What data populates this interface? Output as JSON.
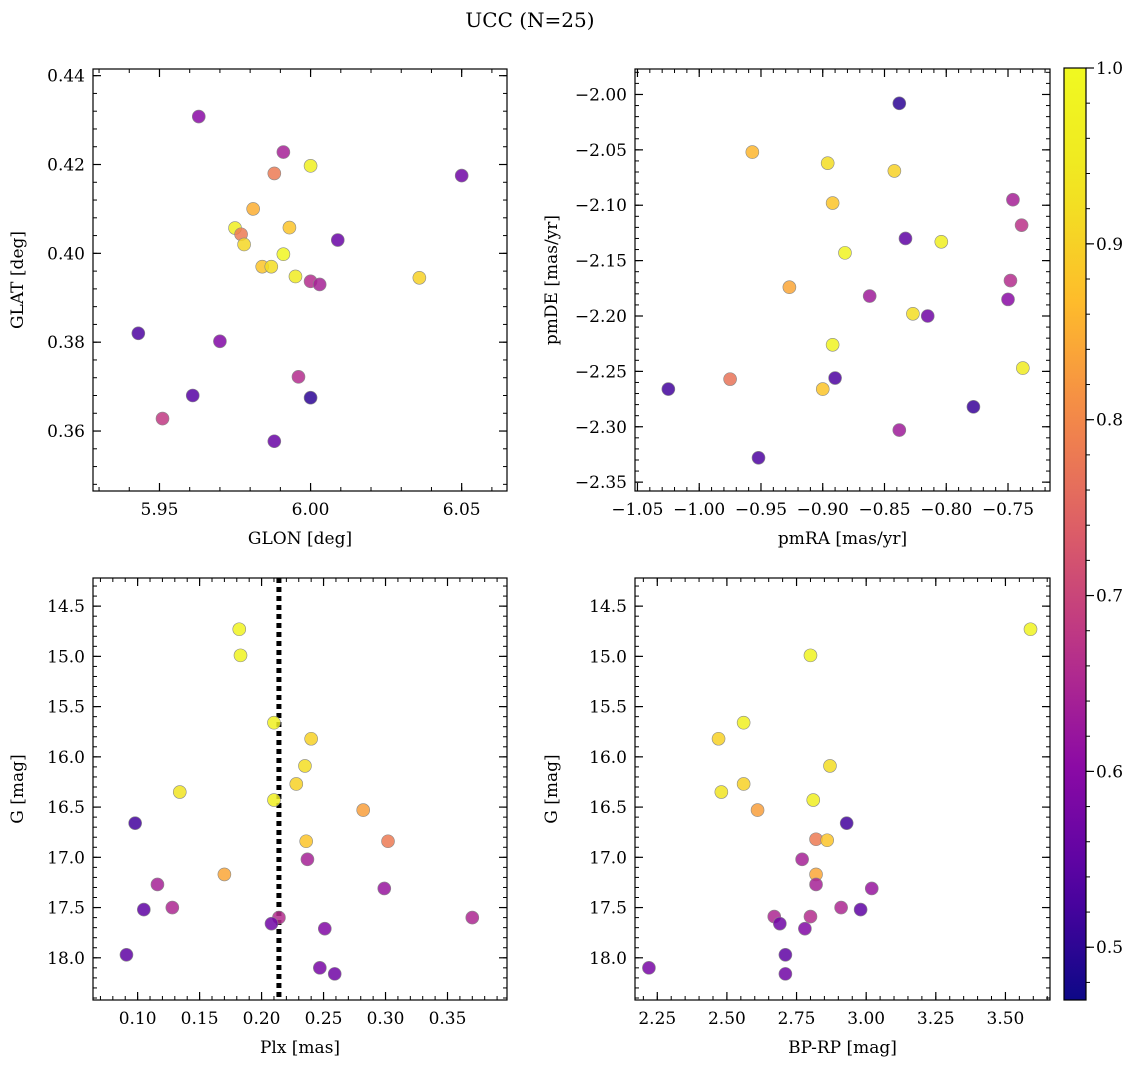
{
  "figure": {
    "title": "UCC (N=25)"
  },
  "colorbar": {
    "ticks": [
      0.5,
      0.6,
      0.7,
      0.8,
      0.9,
      1.0
    ],
    "tick_labels": [
      "0.5",
      "0.6",
      "0.7",
      "0.8",
      "0.9",
      "1.0"
    ],
    "range": [
      0.47,
      1.0
    ],
    "colormap": "plasma"
  },
  "chart_data": [
    {
      "type": "scatter",
      "xlabel": "GLON [deg]",
      "ylabel": "GLAT [deg]",
      "xlim": [
        5.928,
        6.065
      ],
      "ylim": [
        0.3465,
        0.4415
      ],
      "xticks": [
        5.95,
        6.0,
        6.05
      ],
      "xtick_labels": [
        "5.95",
        "6.00",
        "6.05"
      ],
      "yticks": [
        0.36,
        0.38,
        0.4,
        0.42,
        0.44
      ],
      "ytick_labels": [
        "0.36",
        "0.38",
        "0.40",
        "0.42",
        "0.44"
      ],
      "y_inverted": false,
      "points": [
        {
          "x": 5.963,
          "y": 0.4308,
          "c": 0.6
        },
        {
          "x": 5.991,
          "y": 0.4228,
          "c": 0.64
        },
        {
          "x": 6.0,
          "y": 0.4197,
          "c": 0.97
        },
        {
          "x": 5.988,
          "y": 0.418,
          "c": 0.78
        },
        {
          "x": 6.05,
          "y": 0.4175,
          "c": 0.57
        },
        {
          "x": 5.981,
          "y": 0.41,
          "c": 0.85
        },
        {
          "x": 5.993,
          "y": 0.4058,
          "c": 0.88
        },
        {
          "x": 5.975,
          "y": 0.4057,
          "c": 0.96
        },
        {
          "x": 5.977,
          "y": 0.4043,
          "c": 0.78
        },
        {
          "x": 6.009,
          "y": 0.403,
          "c": 0.56
        },
        {
          "x": 5.978,
          "y": 0.402,
          "c": 0.91
        },
        {
          "x": 5.991,
          "y": 0.3998,
          "c": 0.99
        },
        {
          "x": 5.984,
          "y": 0.397,
          "c": 0.88
        },
        {
          "x": 5.987,
          "y": 0.397,
          "c": 0.92
        },
        {
          "x": 5.995,
          "y": 0.3948,
          "c": 0.95
        },
        {
          "x": 6.036,
          "y": 0.3945,
          "c": 0.9
        },
        {
          "x": 6.0,
          "y": 0.3937,
          "c": 0.66
        },
        {
          "x": 6.003,
          "y": 0.393,
          "c": 0.64
        },
        {
          "x": 5.943,
          "y": 0.382,
          "c": 0.53
        },
        {
          "x": 5.97,
          "y": 0.3802,
          "c": 0.59
        },
        {
          "x": 5.996,
          "y": 0.3722,
          "c": 0.66
        },
        {
          "x": 5.961,
          "y": 0.368,
          "c": 0.54
        },
        {
          "x": 6.0,
          "y": 0.3675,
          "c": 0.5
        },
        {
          "x": 5.951,
          "y": 0.3628,
          "c": 0.68
        },
        {
          "x": 5.988,
          "y": 0.3577,
          "c": 0.56
        }
      ]
    },
    {
      "type": "scatter",
      "xlabel": "pmRA [mas/yr]",
      "ylabel": "pmDE [mas/yr]",
      "xlim": [
        -1.052,
        -0.716
      ],
      "ylim": [
        -2.358,
        -1.977
      ],
      "xticks": [
        -1.05,
        -1.0,
        -0.95,
        -0.9,
        -0.85,
        -0.8,
        -0.75
      ],
      "xtick_labels": [
        "−1.05",
        "−1.00",
        "−0.95",
        "−0.90",
        "−0.85",
        "−0.80",
        "−0.75"
      ],
      "yticks": [
        -2.35,
        -2.3,
        -2.25,
        -2.2,
        -2.15,
        -2.1,
        -2.05,
        -2.0
      ],
      "ytick_labels": [
        "−2.35",
        "−2.30",
        "−2.25",
        "−2.20",
        "−2.15",
        "−2.10",
        "−2.05",
        "−2.00"
      ],
      "y_inverted": false,
      "points": [
        {
          "x": -0.838,
          "y": -2.008,
          "c": 0.5
        },
        {
          "x": -0.957,
          "y": -2.052,
          "c": 0.86
        },
        {
          "x": -0.896,
          "y": -2.062,
          "c": 0.92
        },
        {
          "x": -0.842,
          "y": -2.069,
          "c": 0.9
        },
        {
          "x": -0.746,
          "y": -2.095,
          "c": 0.64
        },
        {
          "x": -0.892,
          "y": -2.098,
          "c": 0.88
        },
        {
          "x": -0.739,
          "y": -2.118,
          "c": 0.67
        },
        {
          "x": -0.833,
          "y": -2.13,
          "c": 0.55
        },
        {
          "x": -0.804,
          "y": -2.133,
          "c": 0.96
        },
        {
          "x": -0.882,
          "y": -2.143,
          "c": 0.98
        },
        {
          "x": -0.748,
          "y": -2.168,
          "c": 0.66
        },
        {
          "x": -0.927,
          "y": -2.174,
          "c": 0.84
        },
        {
          "x": -0.862,
          "y": -2.182,
          "c": 0.63
        },
        {
          "x": -0.75,
          "y": -2.185,
          "c": 0.6
        },
        {
          "x": -0.827,
          "y": -2.198,
          "c": 0.92
        },
        {
          "x": -0.815,
          "y": -2.2,
          "c": 0.57
        },
        {
          "x": -0.892,
          "y": -2.226,
          "c": 0.98
        },
        {
          "x": -0.738,
          "y": -2.247,
          "c": 0.95
        },
        {
          "x": -0.89,
          "y": -2.256,
          "c": 0.53
        },
        {
          "x": -0.975,
          "y": -2.257,
          "c": 0.77
        },
        {
          "x": -1.025,
          "y": -2.266,
          "c": 0.52
        },
        {
          "x": -0.9,
          "y": -2.266,
          "c": 0.88
        },
        {
          "x": -0.778,
          "y": -2.282,
          "c": 0.51
        },
        {
          "x": -0.838,
          "y": -2.303,
          "c": 0.63
        },
        {
          "x": -0.952,
          "y": -2.328,
          "c": 0.53
        }
      ]
    },
    {
      "type": "scatter",
      "xlabel": "Plx [mas]",
      "ylabel": "G [mag]",
      "xlim": [
        0.064,
        0.398
      ],
      "ylim": [
        14.22,
        18.42
      ],
      "xticks": [
        0.1,
        0.15,
        0.2,
        0.25,
        0.3,
        0.35
      ],
      "xtick_labels": [
        "0.10",
        "0.15",
        "0.20",
        "0.25",
        "0.30",
        "0.35"
      ],
      "yticks": [
        14.5,
        15.0,
        15.5,
        16.0,
        16.5,
        17.0,
        17.5,
        18.0
      ],
      "ytick_labels": [
        "14.5",
        "15.0",
        "15.5",
        "16.0",
        "16.5",
        "17.0",
        "17.5",
        "18.0"
      ],
      "y_inverted": true,
      "vline": {
        "x": 0.214,
        "style": "dotted"
      },
      "points": [
        {
          "x": 0.182,
          "y": 14.73,
          "c": 0.98
        },
        {
          "x": 0.183,
          "y": 14.99,
          "c": 0.98
        },
        {
          "x": 0.21,
          "y": 15.66,
          "c": 0.97
        },
        {
          "x": 0.24,
          "y": 15.82,
          "c": 0.9
        },
        {
          "x": 0.235,
          "y": 16.09,
          "c": 0.92
        },
        {
          "x": 0.228,
          "y": 16.27,
          "c": 0.9
        },
        {
          "x": 0.134,
          "y": 16.35,
          "c": 0.93
        },
        {
          "x": 0.21,
          "y": 16.43,
          "c": 0.96
        },
        {
          "x": 0.282,
          "y": 16.53,
          "c": 0.83
        },
        {
          "x": 0.098,
          "y": 16.66,
          "c": 0.52
        },
        {
          "x": 0.236,
          "y": 16.84,
          "c": 0.88
        },
        {
          "x": 0.302,
          "y": 16.84,
          "c": 0.78
        },
        {
          "x": 0.237,
          "y": 17.02,
          "c": 0.64
        },
        {
          "x": 0.17,
          "y": 17.17,
          "c": 0.84
        },
        {
          "x": 0.116,
          "y": 17.27,
          "c": 0.64
        },
        {
          "x": 0.299,
          "y": 17.31,
          "c": 0.62
        },
        {
          "x": 0.128,
          "y": 17.5,
          "c": 0.65
        },
        {
          "x": 0.105,
          "y": 17.52,
          "c": 0.55
        },
        {
          "x": 0.214,
          "y": 17.6,
          "c": 0.66
        },
        {
          "x": 0.37,
          "y": 17.6,
          "c": 0.65
        },
        {
          "x": 0.208,
          "y": 17.66,
          "c": 0.57
        },
        {
          "x": 0.251,
          "y": 17.71,
          "c": 0.59
        },
        {
          "x": 0.091,
          "y": 17.97,
          "c": 0.55
        },
        {
          "x": 0.247,
          "y": 18.1,
          "c": 0.58
        },
        {
          "x": 0.259,
          "y": 18.16,
          "c": 0.57
        }
      ]
    },
    {
      "type": "scatter",
      "xlabel": "BP-RP [mag]",
      "ylabel": "G [mag]",
      "xlim": [
        2.17,
        3.66
      ],
      "ylim": [
        14.22,
        18.42
      ],
      "xticks": [
        2.25,
        2.5,
        2.75,
        3.0,
        3.25,
        3.5
      ],
      "xtick_labels": [
        "2.25",
        "2.50",
        "2.75",
        "3.00",
        "3.25",
        "3.50"
      ],
      "yticks": [
        14.5,
        15.0,
        15.5,
        16.0,
        16.5,
        17.0,
        17.5,
        18.0
      ],
      "ytick_labels": [
        "14.5",
        "15.0",
        "15.5",
        "16.0",
        "16.5",
        "17.0",
        "17.5",
        "18.0"
      ],
      "y_inverted": true,
      "points": [
        {
          "x": 3.59,
          "y": 14.73,
          "c": 0.98
        },
        {
          "x": 2.8,
          "y": 14.99,
          "c": 0.98
        },
        {
          "x": 2.56,
          "y": 15.66,
          "c": 0.97
        },
        {
          "x": 2.47,
          "y": 15.82,
          "c": 0.9
        },
        {
          "x": 2.87,
          "y": 16.09,
          "c": 0.92
        },
        {
          "x": 2.56,
          "y": 16.27,
          "c": 0.9
        },
        {
          "x": 2.48,
          "y": 16.35,
          "c": 0.93
        },
        {
          "x": 2.81,
          "y": 16.43,
          "c": 0.96
        },
        {
          "x": 2.61,
          "y": 16.53,
          "c": 0.83
        },
        {
          "x": 2.93,
          "y": 16.66,
          "c": 0.52
        },
        {
          "x": 2.82,
          "y": 16.82,
          "c": 0.78
        },
        {
          "x": 2.86,
          "y": 16.83,
          "c": 0.88
        },
        {
          "x": 2.77,
          "y": 17.02,
          "c": 0.64
        },
        {
          "x": 2.82,
          "y": 17.17,
          "c": 0.84
        },
        {
          "x": 2.82,
          "y": 17.27,
          "c": 0.64
        },
        {
          "x": 3.02,
          "y": 17.31,
          "c": 0.62
        },
        {
          "x": 2.91,
          "y": 17.5,
          "c": 0.65
        },
        {
          "x": 2.98,
          "y": 17.52,
          "c": 0.55
        },
        {
          "x": 2.67,
          "y": 17.59,
          "c": 0.65
        },
        {
          "x": 2.8,
          "y": 17.59,
          "c": 0.66
        },
        {
          "x": 2.69,
          "y": 17.66,
          "c": 0.57
        },
        {
          "x": 2.78,
          "y": 17.71,
          "c": 0.59
        },
        {
          "x": 2.71,
          "y": 17.97,
          "c": 0.55
        },
        {
          "x": 2.22,
          "y": 18.1,
          "c": 0.58
        },
        {
          "x": 2.71,
          "y": 18.16,
          "c": 0.57
        }
      ]
    }
  ]
}
